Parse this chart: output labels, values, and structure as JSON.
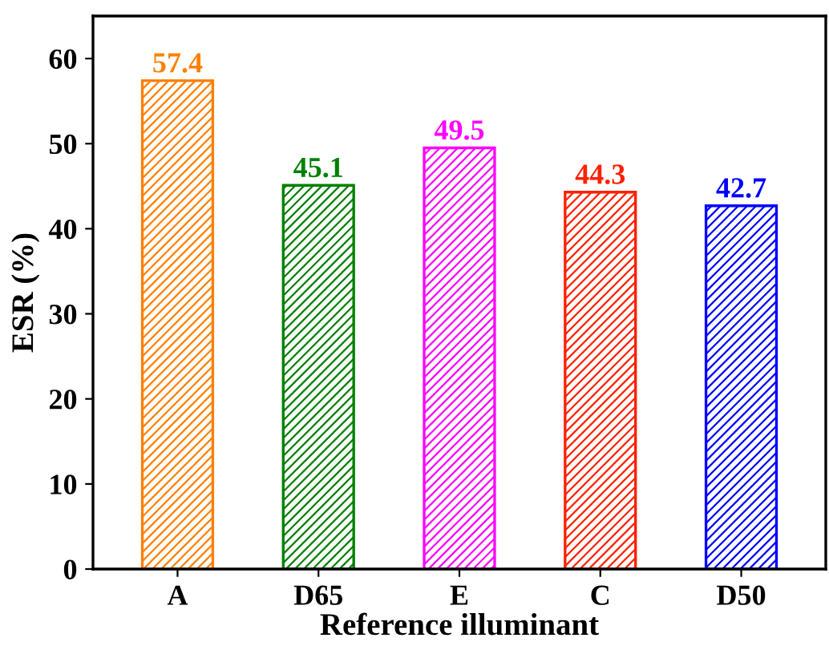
{
  "chart_data": {
    "type": "bar",
    "xlabel": "Reference illuminant",
    "ylabel": "ESR (%)",
    "categories": [
      "A",
      "D65",
      "E",
      "C",
      "D50"
    ],
    "values": [
      57.4,
      45.1,
      49.5,
      44.3,
      42.7
    ],
    "colors": [
      "#ff8000",
      "#008000",
      "#ff00ff",
      "#ff2000",
      "#0000ff"
    ],
    "ylim": [
      0,
      65
    ],
    "yticks": [
      0,
      10,
      20,
      30,
      40,
      50,
      60
    ],
    "grid": false,
    "data_labels": true
  }
}
